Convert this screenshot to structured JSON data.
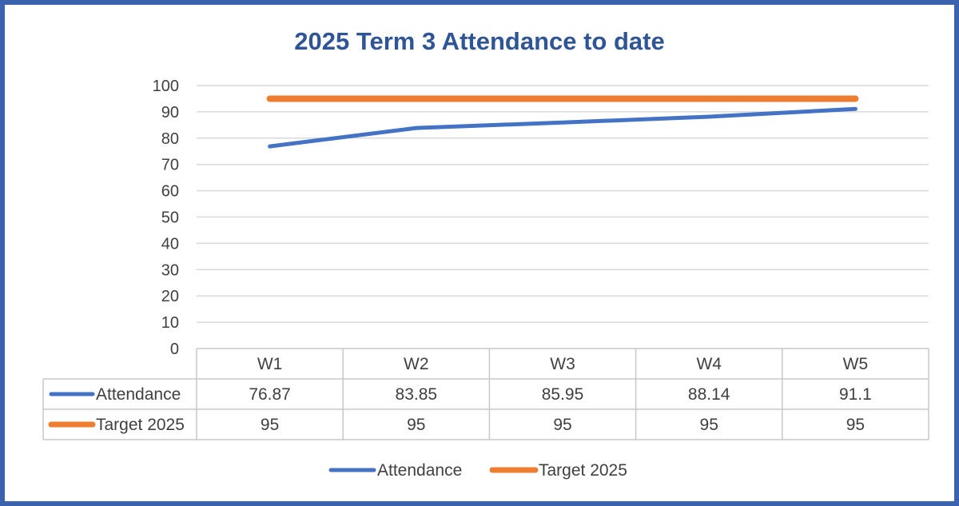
{
  "chart_data": {
    "type": "line",
    "title": "2025 Term 3 Attendance to date",
    "categories": [
      "W1",
      "W2",
      "W3",
      "W4",
      "W5"
    ],
    "ylim": [
      0,
      100
    ],
    "yticks": [
      0,
      10,
      20,
      30,
      40,
      50,
      60,
      70,
      80,
      90,
      100
    ],
    "grid": true,
    "legend_position": "bottom",
    "data_table": true,
    "series": [
      {
        "name": "Attendance",
        "values": [
          76.87,
          83.85,
          85.95,
          88.14,
          91.1
        ],
        "color": "#4472c4"
      },
      {
        "name": "Target 2025",
        "values": [
          95,
          95,
          95,
          95,
          95
        ],
        "color": "#ed7d31"
      }
    ]
  }
}
